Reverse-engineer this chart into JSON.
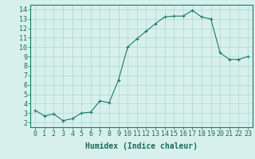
{
  "x": [
    0,
    1,
    2,
    3,
    4,
    5,
    6,
    7,
    8,
    9,
    10,
    11,
    12,
    13,
    14,
    15,
    16,
    17,
    18,
    19,
    20,
    21,
    22,
    23
  ],
  "y": [
    3.3,
    2.7,
    2.9,
    2.2,
    2.4,
    3.0,
    3.1,
    4.3,
    4.1,
    6.5,
    10.0,
    10.9,
    11.7,
    12.5,
    13.2,
    13.3,
    13.3,
    13.9,
    13.2,
    13.0,
    9.4,
    8.7,
    8.7,
    9.0
  ],
  "line_color": "#1a7a6a",
  "marker": "+",
  "marker_size": 3,
  "marker_linewidth": 0.8,
  "bg_color": "#d8f0ec",
  "grid_color": "#a8d8d0",
  "xlabel": "Humidex (Indice chaleur)",
  "xlim": [
    -0.5,
    23.5
  ],
  "ylim": [
    1.5,
    14.5
  ],
  "yticks": [
    2,
    3,
    4,
    5,
    6,
    7,
    8,
    9,
    10,
    11,
    12,
    13,
    14
  ],
  "xticks": [
    0,
    1,
    2,
    3,
    4,
    5,
    6,
    7,
    8,
    9,
    10,
    11,
    12,
    13,
    14,
    15,
    16,
    17,
    18,
    19,
    20,
    21,
    22,
    23
  ],
  "tick_color": "#1a6a5a",
  "xlabel_fontsize": 7,
  "tick_fontsize": 6,
  "spine_color": "#1a7a6a",
  "line_width": 0.8
}
